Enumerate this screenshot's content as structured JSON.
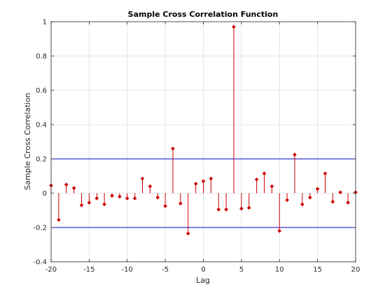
{
  "chart_data": {
    "type": "stem",
    "title": "Sample Cross Correlation Function",
    "xlabel": "Lag",
    "ylabel": "Sample Cross Correlation",
    "xlim": [
      -20,
      20
    ],
    "ylim": [
      -0.4,
      1
    ],
    "xticks": [
      -20,
      -15,
      -10,
      -5,
      0,
      5,
      10,
      15,
      20
    ],
    "yticks": [
      -0.4,
      -0.2,
      0,
      0.2,
      0.4,
      0.6,
      0.8,
      1
    ],
    "grid": true,
    "legend": "none",
    "x": [
      -20,
      -19,
      -18,
      -17,
      -16,
      -15,
      -14,
      -13,
      -12,
      -11,
      -10,
      -9,
      -8,
      -7,
      -6,
      -5,
      -4,
      -3,
      -2,
      -1,
      0,
      1,
      2,
      3,
      4,
      5,
      6,
      7,
      8,
      9,
      10,
      11,
      12,
      13,
      14,
      15,
      16,
      17,
      18,
      19,
      20
    ],
    "values": [
      0.045,
      -0.155,
      0.05,
      0.03,
      -0.07,
      -0.055,
      -0.03,
      -0.065,
      -0.015,
      -0.02,
      -0.03,
      -0.03,
      0.085,
      0.04,
      -0.025,
      -0.075,
      0.26,
      -0.06,
      -0.235,
      0.055,
      0.07,
      0.085,
      -0.095,
      -0.095,
      0.97,
      -0.09,
      -0.085,
      0.08,
      0.115,
      0.04,
      -0.22,
      -0.04,
      0.225,
      -0.065,
      -0.025,
      0.025,
      0.115,
      -0.05,
      0.005,
      -0.055,
      0.005
    ],
    "confidence_bounds": [
      0.2,
      -0.2
    ],
    "stem_color": "#cc0000",
    "bound_color": "#0000cc"
  }
}
